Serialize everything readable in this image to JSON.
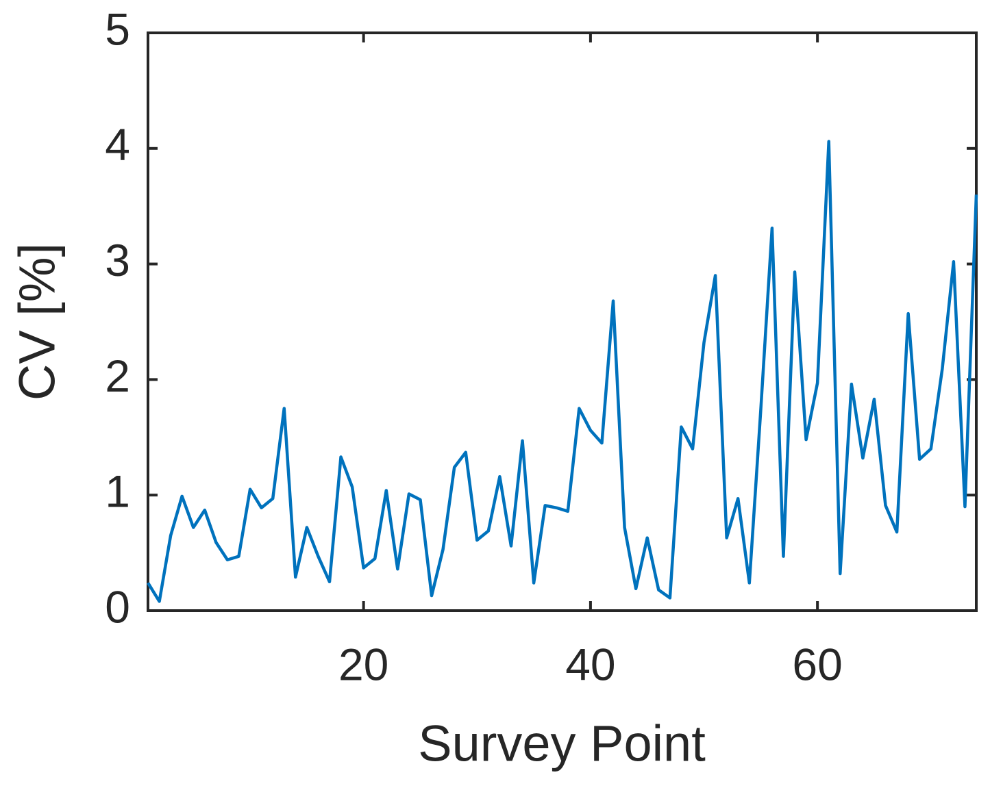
{
  "chart_data": {
    "type": "line",
    "xlabel": "Survey Point",
    "ylabel": "CV [%]",
    "x": [
      1,
      2,
      3,
      4,
      5,
      6,
      7,
      8,
      9,
      10,
      11,
      12,
      13,
      14,
      15,
      16,
      17,
      18,
      19,
      20,
      21,
      22,
      23,
      24,
      25,
      26,
      27,
      28,
      29,
      30,
      31,
      32,
      33,
      34,
      35,
      36,
      37,
      38,
      39,
      40,
      41,
      42,
      43,
      44,
      45,
      46,
      47,
      48,
      49,
      50,
      51,
      52,
      53,
      54,
      55,
      56,
      57,
      58,
      59,
      60,
      61,
      62,
      63,
      64,
      65,
      66,
      67,
      68,
      69,
      70,
      71,
      72,
      73,
      74
    ],
    "series": [
      {
        "color": "#0072bd",
        "values": [
          0.24,
          0.08,
          0.65,
          0.99,
          0.72,
          0.87,
          0.59,
          0.44,
          0.47,
          1.05,
          0.89,
          0.97,
          1.75,
          0.29,
          0.72,
          0.47,
          0.25,
          1.33,
          1.07,
          0.37,
          0.45,
          1.04,
          0.36,
          1.01,
          0.96,
          0.13,
          0.53,
          1.24,
          1.37,
          0.61,
          0.69,
          1.16,
          0.56,
          1.47,
          0.24,
          0.91,
          0.89,
          0.86,
          1.75,
          1.56,
          1.45,
          2.68,
          0.72,
          0.19,
          0.63,
          0.18,
          0.11,
          1.59,
          1.4,
          2.32,
          2.9,
          0.63,
          0.97,
          0.24,
          1.73,
          3.31,
          0.47,
          2.93,
          1.48,
          1.97,
          4.06,
          0.32,
          1.96,
          1.32,
          1.83,
          0.91,
          0.68,
          2.57,
          1.31,
          1.4,
          2.09,
          3.02,
          0.9,
          3.6
        ]
      }
    ],
    "xlim": [
      1,
      74
    ],
    "xticks": [
      20,
      40,
      60
    ],
    "ylim": [
      0,
      5
    ],
    "yticks": [
      0,
      1,
      2,
      3,
      4,
      5
    ],
    "grid": false
  }
}
